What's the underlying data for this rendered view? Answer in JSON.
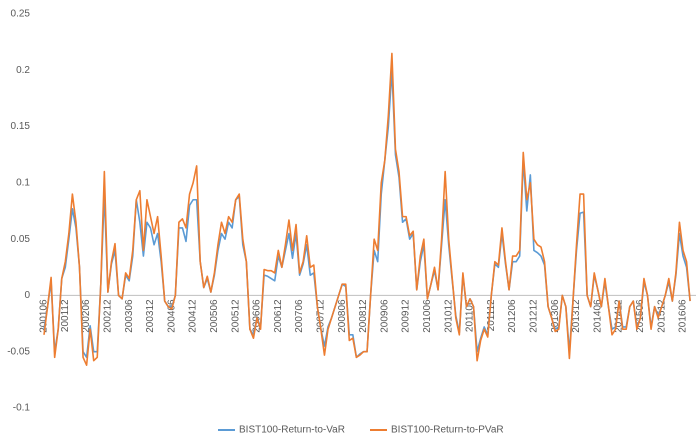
{
  "chart_data": {
    "type": "line",
    "categories": [
      "200106",
      null,
      null,
      null,
      null,
      null,
      "200112",
      null,
      null,
      null,
      null,
      null,
      "200206",
      null,
      null,
      null,
      null,
      null,
      "200212",
      null,
      null,
      null,
      null,
      null,
      "200306",
      null,
      null,
      null,
      null,
      null,
      "200312",
      null,
      null,
      null,
      null,
      null,
      "200406",
      null,
      null,
      null,
      null,
      null,
      "200412",
      null,
      null,
      null,
      null,
      null,
      "200506",
      null,
      null,
      null,
      null,
      null,
      "200512",
      null,
      null,
      null,
      null,
      null,
      "200606",
      null,
      null,
      null,
      null,
      null,
      "200612",
      null,
      null,
      null,
      null,
      null,
      "200706",
      null,
      null,
      null,
      null,
      null,
      "200712",
      null,
      null,
      null,
      null,
      null,
      "200806",
      null,
      null,
      null,
      null,
      null,
      "200812",
      null,
      null,
      null,
      null,
      null,
      "200906",
      null,
      null,
      null,
      null,
      null,
      "200912",
      null,
      null,
      null,
      null,
      null,
      "201006",
      null,
      null,
      null,
      null,
      null,
      "201012",
      null,
      null,
      null,
      null,
      null,
      "201106",
      null,
      null,
      null,
      null,
      null,
      "201112",
      null,
      null,
      null,
      null,
      null,
      "201206",
      null,
      null,
      null,
      null,
      null,
      "201212",
      null,
      null,
      null,
      null,
      null,
      "201306",
      null,
      null,
      null,
      null,
      null,
      "201312",
      null,
      null,
      null,
      null,
      null,
      "201406",
      null,
      null,
      null,
      null,
      null,
      "201412",
      null,
      null,
      null,
      null,
      null,
      "201506",
      null,
      null,
      null,
      null,
      null,
      "201512",
      null,
      null,
      null,
      null,
      null,
      "201606",
      null,
      null
    ],
    "series": [
      {
        "name": "BIST100-Return-to-VaR",
        "color": "#5b9bd5",
        "values": [
          -0.03,
          -0.01,
          0.012,
          -0.05,
          -0.03,
          0.015,
          0.025,
          0.05,
          0.077,
          0.06,
          0.025,
          -0.05,
          -0.055,
          -0.027,
          -0.05,
          -0.05,
          0.01,
          0.09,
          0.003,
          0.028,
          0.04,
          0.0,
          -0.003,
          0.018,
          0.013,
          0.035,
          0.085,
          0.065,
          0.035,
          0.065,
          0.06,
          0.045,
          0.055,
          0.03,
          -0.005,
          -0.01,
          -0.01,
          0.0,
          0.06,
          0.06,
          0.048,
          0.08,
          0.085,
          0.085,
          0.03,
          0.007,
          0.015,
          0.003,
          0.018,
          0.04,
          0.055,
          0.05,
          0.065,
          0.06,
          0.085,
          0.088,
          0.045,
          0.03,
          -0.03,
          -0.035,
          -0.02,
          -0.028,
          0.018,
          0.017,
          0.015,
          0.013,
          0.035,
          0.025,
          0.04,
          0.055,
          0.033,
          0.055,
          0.018,
          0.028,
          0.045,
          0.018,
          0.02,
          -0.01,
          -0.03,
          -0.045,
          -0.028,
          -0.02,
          -0.01,
          0.0,
          0.01,
          0.008,
          -0.035,
          -0.035,
          -0.055,
          -0.052,
          -0.05,
          -0.05,
          0.0,
          0.04,
          0.03,
          0.09,
          0.12,
          0.15,
          0.2,
          0.125,
          0.105,
          0.065,
          0.068,
          0.05,
          0.055,
          0.005,
          0.03,
          0.045,
          -0.003,
          0.01,
          0.022,
          0.005,
          0.045,
          0.085,
          0.045,
          0.013,
          -0.018,
          -0.033,
          0.018,
          -0.01,
          -0.003,
          -0.01,
          -0.05,
          -0.038,
          -0.028,
          -0.035,
          0.0,
          0.028,
          0.025,
          0.055,
          0.028,
          0.005,
          0.03,
          0.03,
          0.035,
          0.12,
          0.075,
          0.107,
          0.04,
          0.038,
          0.035,
          0.027,
          -0.01,
          -0.02,
          -0.03,
          -0.028,
          0.0,
          -0.01,
          -0.05,
          -0.005,
          0.04,
          0.073,
          0.074,
          0.0,
          -0.01,
          0.018,
          0.005,
          -0.01,
          0.012,
          -0.01,
          -0.03,
          -0.028,
          -0.005,
          -0.028,
          -0.028,
          -0.01,
          -0.005,
          -0.028,
          -0.02,
          0.012,
          0.0,
          -0.028,
          -0.01,
          -0.018,
          -0.01,
          0.0,
          0.012,
          -0.005,
          0.018,
          0.055,
          0.035,
          0.025,
          -0.005
        ]
      },
      {
        "name": "BIST100-Return-to-PVaR",
        "color": "#ed7d31",
        "values": [
          -0.035,
          -0.01,
          0.016,
          -0.055,
          -0.03,
          0.015,
          0.03,
          0.055,
          0.09,
          0.065,
          0.025,
          -0.055,
          -0.062,
          -0.03,
          -0.058,
          -0.055,
          0.01,
          0.11,
          0.003,
          0.03,
          0.046,
          0.0,
          -0.003,
          0.02,
          0.015,
          0.04,
          0.085,
          0.093,
          0.04,
          0.085,
          0.07,
          0.055,
          0.07,
          0.035,
          -0.005,
          -0.01,
          -0.012,
          0.0,
          0.065,
          0.068,
          0.06,
          0.09,
          0.1,
          0.115,
          0.03,
          0.007,
          0.017,
          0.003,
          0.02,
          0.045,
          0.065,
          0.055,
          0.07,
          0.065,
          0.085,
          0.09,
          0.05,
          0.03,
          -0.03,
          -0.038,
          -0.02,
          -0.03,
          0.023,
          0.022,
          0.022,
          0.02,
          0.04,
          0.025,
          0.045,
          0.067,
          0.04,
          0.063,
          0.02,
          0.03,
          0.053,
          0.025,
          0.027,
          -0.01,
          -0.03,
          -0.053,
          -0.03,
          -0.02,
          -0.01,
          0.0,
          0.01,
          0.01,
          -0.04,
          -0.038,
          -0.055,
          -0.053,
          -0.05,
          -0.05,
          0.0,
          0.05,
          0.04,
          0.1,
          0.12,
          0.16,
          0.215,
          0.13,
          0.11,
          0.07,
          0.07,
          0.053,
          0.057,
          0.005,
          0.035,
          0.05,
          -0.003,
          0.01,
          0.025,
          0.005,
          0.05,
          0.11,
          0.05,
          0.015,
          -0.02,
          -0.035,
          0.02,
          -0.01,
          -0.003,
          -0.01,
          -0.058,
          -0.04,
          -0.03,
          -0.037,
          0.0,
          0.03,
          0.027,
          0.06,
          0.03,
          0.005,
          0.035,
          0.035,
          0.04,
          0.127,
          0.085,
          0.1,
          0.05,
          0.045,
          0.043,
          0.03,
          -0.01,
          -0.02,
          -0.032,
          -0.03,
          0.0,
          -0.01,
          -0.056,
          -0.005,
          0.045,
          0.09,
          0.09,
          0.0,
          -0.01,
          0.02,
          0.005,
          -0.01,
          0.015,
          -0.01,
          -0.035,
          -0.03,
          -0.005,
          -0.03,
          -0.03,
          -0.01,
          -0.005,
          -0.03,
          -0.02,
          0.015,
          0.0,
          -0.03,
          -0.01,
          -0.02,
          -0.01,
          0.0,
          0.015,
          -0.005,
          0.02,
          0.065,
          0.04,
          0.03,
          -0.005
        ]
      }
    ],
    "ylim": [
      -0.1,
      0.25
    ],
    "yticks": [
      -0.1,
      -0.05,
      0,
      0.05,
      0.1,
      0.15,
      0.2,
      0.25
    ],
    "grid": false,
    "legend": "bottom"
  }
}
